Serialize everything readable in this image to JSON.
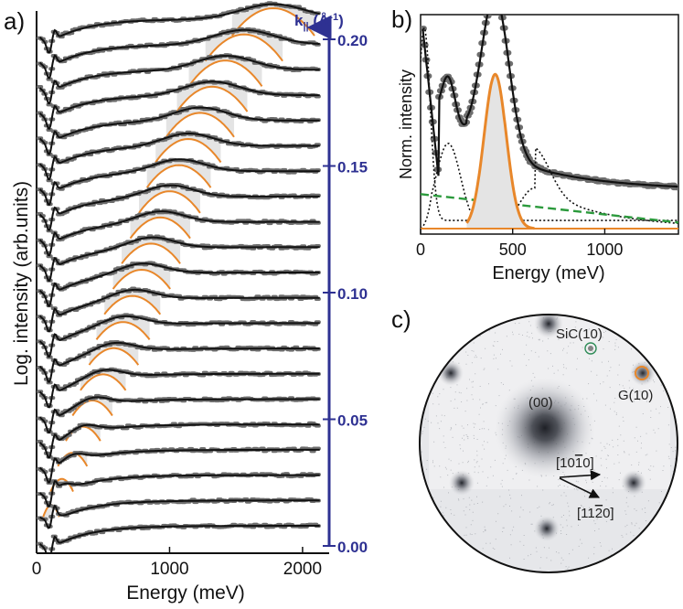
{
  "colors": {
    "data_points": "#6e6e6e",
    "fit_line": "#111111",
    "peak_fill": "#e4e4e4",
    "peak_line": "#e8872a",
    "k_axis": "#2e3192",
    "diffraction_background": "#e6e7ea",
    "diffraction_spot": "#2a2c33",
    "sic_marker": "#2e8b57",
    "g_marker": "#e8872a",
    "background_component": "#2b9a3c"
  },
  "panel_labels": {
    "a": "a)",
    "b": "b)",
    "c": "c)"
  },
  "chart_data": [
    {
      "panel": "a",
      "type": "line",
      "xlabel": "Energy (meV)",
      "ylabel": "Log. intensity (arb.units)",
      "xlim": [
        0,
        2200
      ],
      "xticks": [
        0,
        1000,
        2000
      ],
      "xtick_labels": [
        "0",
        "1000",
        "2000"
      ],
      "right_axis": {
        "label": "k",
        "label_subscript": "||",
        "label_unit": " (Å",
        "label_unit_exp": "-1",
        "label_close": ")",
        "range": [
          0.0,
          0.2
        ],
        "ticks": [
          0.0,
          0.05,
          0.1,
          0.15,
          0.2
        ],
        "tick_labels": [
          "0.00",
          "0.05",
          "0.10",
          "0.15",
          "0.20"
        ]
      },
      "spectra_k_values": [
        0.0,
        0.01,
        0.02,
        0.03,
        0.04,
        0.05,
        0.06,
        0.07,
        0.08,
        0.09,
        0.1,
        0.11,
        0.12,
        0.13,
        0.14,
        0.15,
        0.16,
        0.17,
        0.18,
        0.19,
        0.2
      ],
      "plasmon_peak_energy_meV": [
        null,
        110,
        190,
        270,
        350,
        420,
        500,
        580,
        650,
        720,
        790,
        860,
        930,
        1000,
        1070,
        1140,
        1230,
        1320,
        1420,
        1560,
        1780
      ],
      "plasmon_peak_halfwidth_meV": [
        null,
        60,
        85,
        110,
        130,
        150,
        170,
        185,
        200,
        210,
        215,
        220,
        225,
        230,
        240,
        245,
        255,
        265,
        275,
        290,
        310
      ]
    },
    {
      "panel": "b",
      "type": "line",
      "xlabel": "Energy (meV)",
      "ylabel": "Norm. intensity",
      "xlim": [
        0,
        1400
      ],
      "xticks": [
        0,
        500,
        1000
      ],
      "xtick_labels": [
        "0",
        "500",
        "1000"
      ],
      "series": [
        {
          "x": [
            20,
            40,
            60,
            80,
            100,
            120,
            150,
            200,
            250,
            300,
            350,
            400,
            450,
            500,
            550,
            600,
            700,
            800,
            900,
            1000,
            1100,
            1200,
            1300,
            1400
          ],
          "y": [
            1.0,
            0.6,
            0.35,
            0.25,
            0.2,
            0.38,
            0.45,
            0.44,
            0.47,
            0.62,
            0.85,
            0.95,
            0.9,
            0.74,
            0.55,
            0.42,
            0.32,
            0.27,
            0.23,
            0.19,
            0.16,
            0.13,
            0.11,
            0.09
          ]
        },
        {
          "x": [
            250,
            300,
            350,
            400,
            450,
            500,
            550,
            600
          ],
          "y": [
            0.08,
            0.35,
            0.65,
            0.78,
            0.67,
            0.4,
            0.12,
            0.0
          ]
        },
        {
          "x": [
            0,
            200,
            400,
            600,
            800,
            1000,
            1200,
            1400
          ],
          "y": [
            0.17,
            0.15,
            0.13,
            0.11,
            0.09,
            0.07,
            0.05,
            0.03
          ]
        }
      ]
    }
  ],
  "diffraction": {
    "labels": {
      "sic": "SiC(10)",
      "g": "G(10)",
      "center": "(00)",
      "dir1": "[10",
      "dir1_bar": "1",
      "dir1_end": "0]",
      "dir2": "[11",
      "dir2_bar": "2",
      "dir2_end": "0]"
    }
  }
}
